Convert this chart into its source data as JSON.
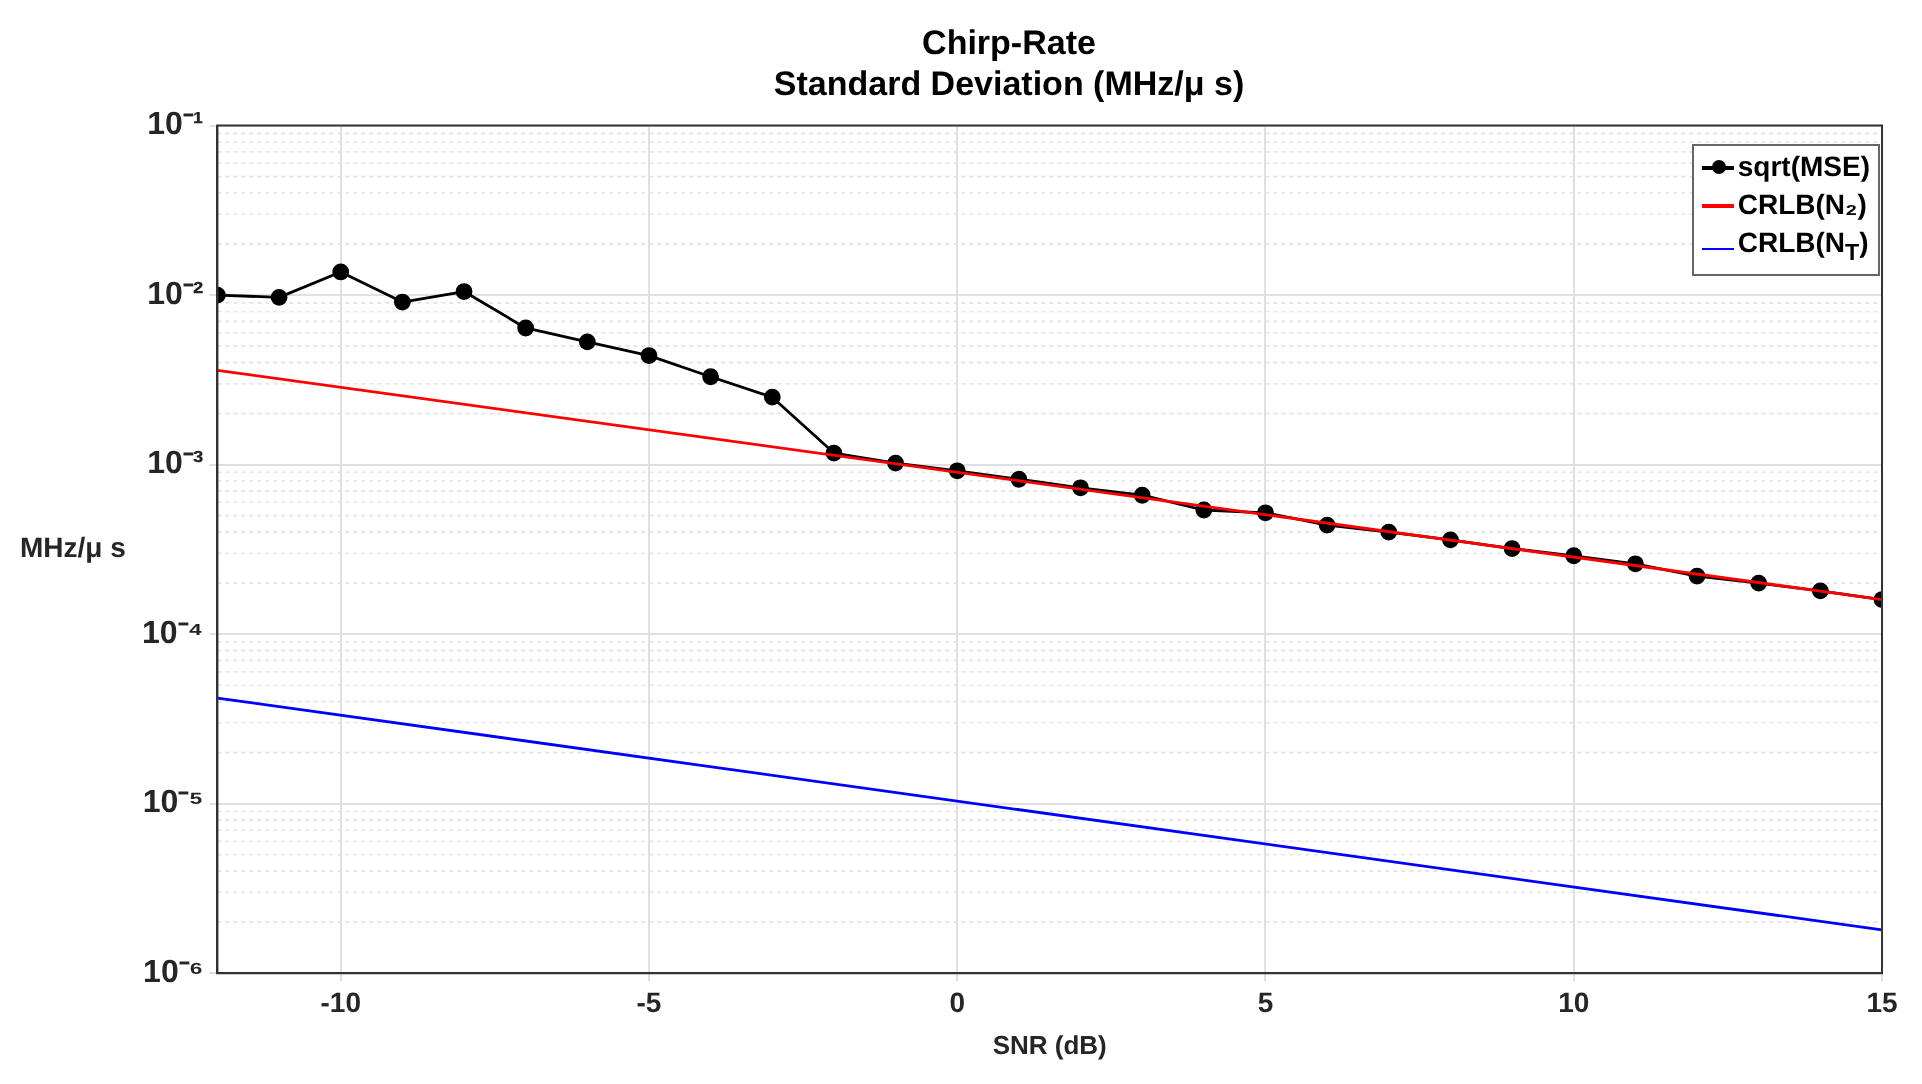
{
  "chart_data": {
    "type": "line",
    "title": "Chirp-Rate",
    "subtitle": "Standard Deviation (MHz/μ s)",
    "xlabel": "SNR (dB)",
    "ylabel": "MHz/μ s",
    "log": "y",
    "grid": true,
    "legend": "top right",
    "xlim": [
      -12,
      15
    ],
    "xticks": [
      -10,
      -5,
      0,
      5,
      10,
      15
    ],
    "ylim": [
      1e-06,
      0.1
    ],
    "yticks": [
      {
        "value": 1e-06,
        "label": "10⁻⁶"
      },
      {
        "value": 1e-05,
        "label": "10⁻⁵"
      },
      {
        "value": 0.0001,
        "label": "10⁻⁴"
      },
      {
        "value": 0.001,
        "label": "10⁻³"
      },
      {
        "value": 0.01,
        "label": "10⁻²"
      },
      {
        "value": 0.1,
        "label": "10⁻¹"
      }
    ],
    "series": [
      {
        "name": "sqrt(MSE)",
        "color": "#000000",
        "marker": "circle",
        "x": [
          -12,
          -11,
          -10,
          -9,
          -8,
          -7,
          -6,
          -5,
          -4,
          -3,
          -2,
          -1,
          0,
          1,
          2,
          3,
          4,
          5,
          6,
          7,
          8,
          9,
          10,
          11,
          12,
          13,
          14,
          15
        ],
        "values": [
          0.01,
          0.0097,
          0.0137,
          0.0091,
          0.0105,
          0.0064,
          0.0053,
          0.0044,
          0.0033,
          0.0025,
          0.00117,
          0.00102,
          0.00092,
          0.00082,
          0.00073,
          0.00066,
          0.00054,
          0.00052,
          0.00044,
          0.0004,
          0.00036,
          0.00032,
          0.00029,
          0.00026,
          0.00022,
          0.0002,
          0.00018,
          0.00016
        ]
      },
      {
        "name": "CRLB(N₂)",
        "color": "#ff0000",
        "marker": "none",
        "x": [
          -12,
          15
        ],
        "values": [
          0.0036,
          0.00016
        ]
      },
      {
        "name": "CRLB(N$_{T}$)",
        "color": "#0000ff",
        "marker": "none",
        "x": [
          -12,
          15
        ],
        "values": [
          4.2e-05,
          1.8e-06
        ]
      }
    ]
  }
}
